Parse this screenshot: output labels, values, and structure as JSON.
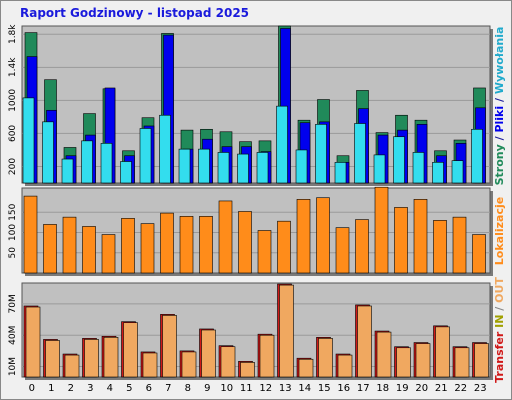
{
  "title": "Raport Godzinowy -  listopad 2025",
  "colors": {
    "background": "#f0f0f0",
    "panel": "#c0c0c0",
    "grid": "#9a9a9a",
    "strony": "#208a5a",
    "pliki": "#0000ee",
    "wywolania": "#33ddee",
    "lokalizacje": "#ff8c1a",
    "transfer_out": "#d01818",
    "transfer_in": "#f0a860",
    "title": "#1a1adc"
  },
  "right_labels": {
    "panel1": [
      {
        "text": "Strony",
        "color": "#208a5a"
      },
      {
        "text": " / ",
        "color": "#1a1a9a"
      },
      {
        "text": "Pliki",
        "color": "#0000ee"
      },
      {
        "text": " / ",
        "color": "#1a1a9a"
      },
      {
        "text": "Wywołania",
        "color": "#20aacc"
      }
    ],
    "panel2": [
      {
        "text": "Lokalizacje",
        "color": "#ff8c1a"
      }
    ],
    "panel3": [
      {
        "text": "Transfer",
        "color": "#d01818"
      },
      {
        "text": "  IN ",
        "color": "#a0a000"
      },
      {
        "text": "/ ",
        "color": "#888888"
      },
      {
        "text": "OUT",
        "color": "#f0a860"
      }
    ]
  },
  "chart_data": [
    {
      "type": "bar",
      "x": [
        0,
        1,
        2,
        3,
        4,
        5,
        6,
        7,
        8,
        9,
        10,
        11,
        12,
        13,
        14,
        15,
        16,
        17,
        18,
        19,
        20,
        21,
        22,
        23
      ],
      "ylim": [
        0,
        1900
      ],
      "yticks": [
        200,
        600,
        1000,
        1400,
        1800
      ],
      "ytick_labels": [
        "200",
        "600",
        "1000",
        "1.4k",
        "1.8k"
      ],
      "series": [
        {
          "name": "Strony",
          "values": [
            1820,
            1250,
            430,
            840,
            1140,
            390,
            790,
            1810,
            640,
            650,
            620,
            500,
            510,
            1900,
            760,
            1010,
            330,
            1120,
            610,
            820,
            760,
            390,
            520,
            1150
          ]
        },
        {
          "name": "Pliki",
          "values": [
            1530,
            880,
            330,
            580,
            1150,
            330,
            690,
            1790,
            410,
            530,
            440,
            440,
            380,
            1870,
            730,
            740,
            250,
            900,
            580,
            640,
            710,
            330,
            480,
            910
          ]
        },
        {
          "name": "Wywołania",
          "values": [
            1030,
            740,
            290,
            510,
            480,
            260,
            660,
            820,
            410,
            410,
            370,
            350,
            370,
            930,
            400,
            710,
            250,
            720,
            340,
            560,
            370,
            250,
            270,
            650
          ]
        }
      ]
    },
    {
      "type": "bar",
      "x": [
        0,
        1,
        2,
        3,
        4,
        5,
        6,
        7,
        8,
        9,
        10,
        11,
        12,
        13,
        14,
        15,
        16,
        17,
        18,
        19,
        20,
        21,
        22,
        23
      ],
      "ylim": [
        0,
        210
      ],
      "yticks": [
        50,
        100,
        150
      ],
      "ytick_labels": [
        "50",
        "100",
        "150"
      ],
      "series": [
        {
          "name": "Lokalizacje",
          "values": [
            190,
            120,
            138,
            115,
            95,
            135,
            122,
            148,
            140,
            140,
            178,
            152,
            105,
            128,
            182,
            186,
            112,
            132,
            212,
            162,
            182,
            130,
            138,
            95
          ]
        }
      ]
    },
    {
      "type": "bar",
      "x": [
        0,
        1,
        2,
        3,
        4,
        5,
        6,
        7,
        8,
        9,
        10,
        11,
        12,
        13,
        14,
        15,
        16,
        17,
        18,
        19,
        20,
        21,
        22,
        23
      ],
      "ylim": [
        0,
        90
      ],
      "yticks": [
        10,
        40,
        70
      ],
      "ytick_labels": [
        "10M",
        "40M",
        "70M"
      ],
      "series": [
        {
          "name": "Transfer",
          "values": [
            68,
            36,
            22,
            37,
            39,
            53,
            24,
            60,
            25,
            46,
            30,
            15,
            41,
            89,
            18,
            38,
            22,
            69,
            44,
            29,
            33,
            49,
            29,
            33
          ]
        },
        {
          "name": "OUT",
          "values": [
            67,
            35,
            21,
            36,
            38,
            52,
            23,
            59,
            24,
            45,
            29,
            14,
            40,
            88,
            17,
            37,
            21,
            68,
            43,
            28,
            32,
            48,
            28,
            32
          ]
        }
      ]
    }
  ]
}
